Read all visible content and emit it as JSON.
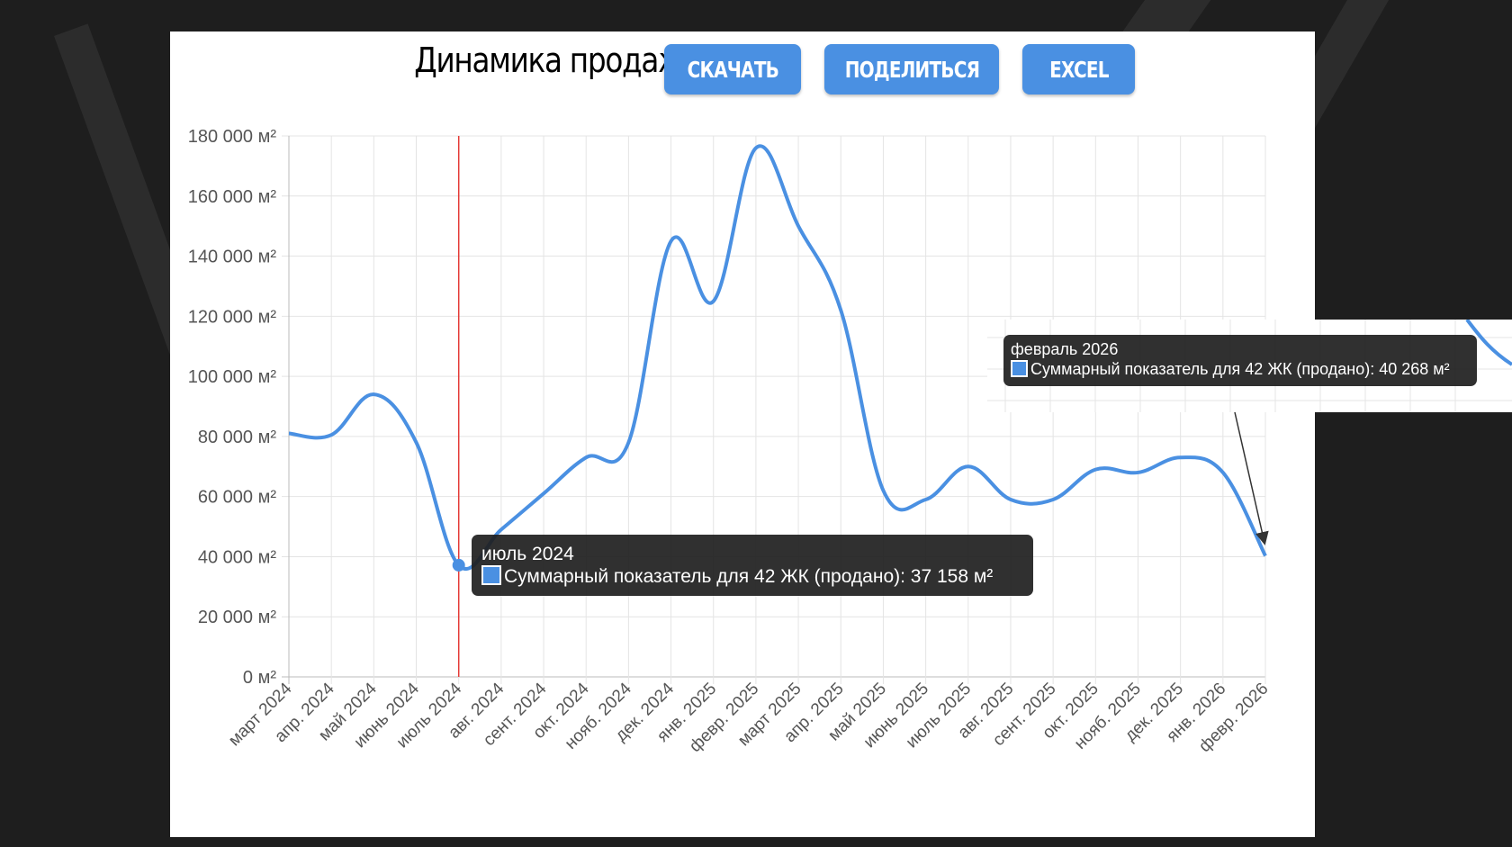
{
  "header": {
    "title": "Динамика продаж",
    "buttons": [
      {
        "label": "СКАЧАТЬ"
      },
      {
        "label": "ПОДЕЛИТЬСЯ"
      },
      {
        "label": "EXCEL"
      }
    ]
  },
  "colors": {
    "accent": "#4a90e2",
    "marker_line": "#e53935",
    "background": "#1e1e1e",
    "tooltip_bg": "#1e1e1e"
  },
  "chart_data": {
    "type": "line",
    "title": "",
    "xlabel": "",
    "ylabel": "",
    "ylim": [
      0,
      180000
    ],
    "y_ticks": [
      "0 м²",
      "20 000 м²",
      "40 000 м²",
      "60 000 м²",
      "80 000 м²",
      "100 000 м²",
      "120 000 м²",
      "140 000 м²",
      "160 000 м²",
      "180 000 м²"
    ],
    "grid": true,
    "categories": [
      "март 2024",
      "апр. 2024",
      "май 2024",
      "июнь 2024",
      "июль 2024",
      "авг. 2024",
      "сент. 2024",
      "окт. 2024",
      "нояб. 2024",
      "дек. 2024",
      "янв. 2025",
      "февр. 2025",
      "март 2025",
      "апр. 2025",
      "май 2025",
      "июнь 2025",
      "июль 2025",
      "авг. 2025",
      "сент. 2025",
      "окт. 2025",
      "нояб. 2025",
      "дек. 2025",
      "янв. 2026",
      "февр. 2026"
    ],
    "series": [
      {
        "values": [
          81000,
          80500,
          94000,
          78000,
          37158,
          49000,
          61000,
          73000,
          78000,
          145000,
          125000,
          176000,
          150000,
          122000,
          62000,
          59000,
          70000,
          59000,
          59000,
          69000,
          68000,
          73000,
          68000,
          40268
        ]
      }
    ],
    "highlight": {
      "category": "июль 2024"
    }
  },
  "tooltips": {
    "main": {
      "title": "июль 2024",
      "body": "Суммарный показатель для 42 ЖК (продано): 37 158 м²"
    },
    "inset": {
      "title": "февраль 2026",
      "body": "Суммарный показатель для 42 ЖК (продано): 40 268 м²"
    }
  }
}
